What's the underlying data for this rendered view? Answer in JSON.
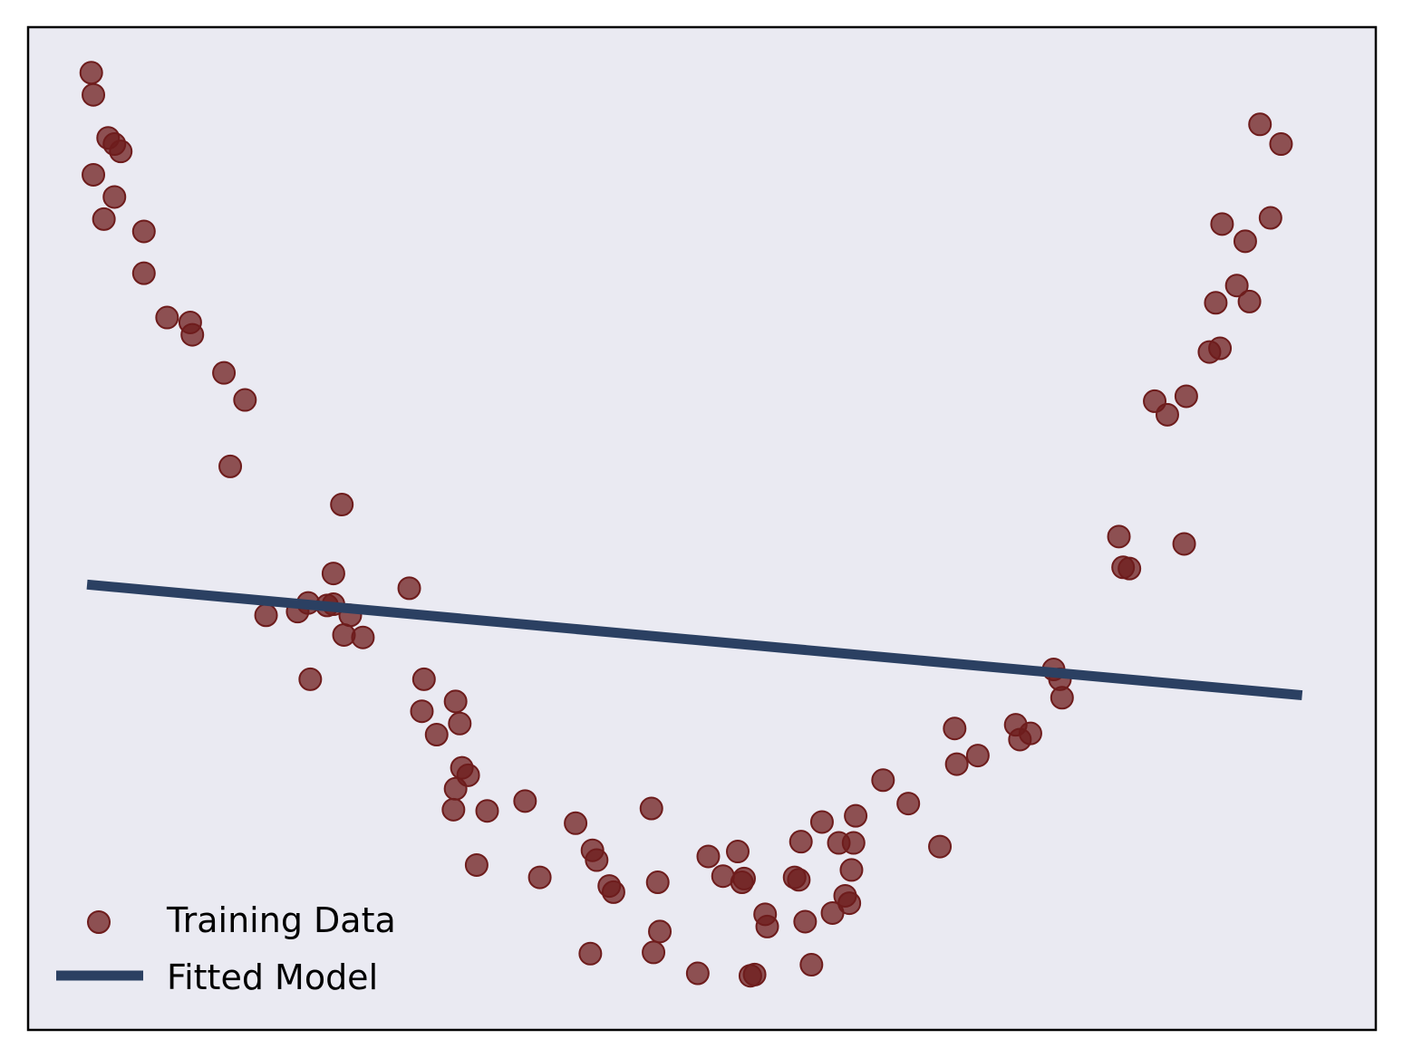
{
  "chart_data": {
    "type": "scatter",
    "title": "",
    "xlabel": "",
    "ylabel": "",
    "xlim": [
      -3.2,
      3.2
    ],
    "ylim": [
      -3.0,
      5.15
    ],
    "grid": false,
    "legend_position": "lower-left",
    "series": [
      {
        "name": "Training Data",
        "kind": "scatter",
        "color": "#6e1c1c",
        "points": [
          [
            -2.9,
            4.78
          ],
          [
            -2.89,
            4.6
          ],
          [
            -2.82,
            4.25
          ],
          [
            -2.79,
            4.2
          ],
          [
            -2.76,
            4.14
          ],
          [
            -2.89,
            3.95
          ],
          [
            -2.79,
            3.77
          ],
          [
            -2.84,
            3.59
          ],
          [
            -2.65,
            3.49
          ],
          [
            -2.65,
            3.15
          ],
          [
            -2.54,
            2.79
          ],
          [
            -2.43,
            2.75
          ],
          [
            -2.42,
            2.65
          ],
          [
            -2.27,
            2.34
          ],
          [
            -2.17,
            2.12
          ],
          [
            -2.24,
            1.58
          ],
          [
            -1.71,
            1.27
          ],
          [
            -1.75,
            0.71
          ],
          [
            -1.75,
            0.46
          ],
          [
            -1.78,
            0.45
          ],
          [
            -1.67,
            0.37
          ],
          [
            -1.7,
            0.21
          ],
          [
            -1.61,
            0.19
          ],
          [
            -2.07,
            0.37
          ],
          [
            -1.92,
            0.4
          ],
          [
            -1.87,
            0.47
          ],
          [
            -1.86,
            -0.15
          ],
          [
            -1.39,
            0.59
          ],
          [
            -1.32,
            -0.15
          ],
          [
            -1.33,
            -0.41
          ],
          [
            -1.26,
            -0.6
          ],
          [
            -1.17,
            -0.33
          ],
          [
            -1.15,
            -0.51
          ],
          [
            -1.14,
            -0.87
          ],
          [
            -1.11,
            -0.93
          ],
          [
            -1.17,
            -1.04
          ],
          [
            -1.18,
            -1.21
          ],
          [
            -1.02,
            -1.22
          ],
          [
            -1.07,
            -1.66
          ],
          [
            -0.84,
            -1.14
          ],
          [
            -0.77,
            -1.76
          ],
          [
            -0.6,
            -1.32
          ],
          [
            -0.52,
            -1.54
          ],
          [
            -0.5,
            -1.62
          ],
          [
            -0.44,
            -1.83
          ],
          [
            -0.42,
            -1.88
          ],
          [
            -0.53,
            -2.38
          ],
          [
            -0.24,
            -1.2
          ],
          [
            -0.21,
            -1.8
          ],
          [
            -0.2,
            -2.2
          ],
          [
            -0.23,
            -2.37
          ],
          [
            -0.02,
            -2.54
          ],
          [
            0.03,
            -1.59
          ],
          [
            0.1,
            -1.75
          ],
          [
            0.17,
            -1.55
          ],
          [
            0.2,
            -1.77
          ],
          [
            0.19,
            -1.8
          ],
          [
            0.23,
            -2.56
          ],
          [
            0.25,
            -2.55
          ],
          [
            0.3,
            -2.06
          ],
          [
            0.31,
            -2.16
          ],
          [
            0.44,
            -1.76
          ],
          [
            0.47,
            -1.47
          ],
          [
            0.46,
            -1.78
          ],
          [
            0.49,
            -2.12
          ],
          [
            0.52,
            -2.47
          ],
          [
            0.57,
            -1.31
          ],
          [
            0.62,
            -2.05
          ],
          [
            0.65,
            -1.48
          ],
          [
            0.68,
            -1.91
          ],
          [
            0.7,
            -1.97
          ],
          [
            0.71,
            -1.7
          ],
          [
            0.72,
            -1.48
          ],
          [
            0.73,
            -1.26
          ],
          [
            0.86,
            -0.97
          ],
          [
            0.98,
            -1.16
          ],
          [
            1.13,
            -1.51
          ],
          [
            1.2,
            -0.55
          ],
          [
            1.21,
            -0.84
          ],
          [
            1.31,
            -0.77
          ],
          [
            1.49,
            -0.52
          ],
          [
            1.51,
            -0.64
          ],
          [
            1.56,
            -0.59
          ],
          [
            1.67,
            -0.07
          ],
          [
            1.7,
            -0.15
          ],
          [
            1.71,
            -0.3
          ],
          [
            1.98,
            1.01
          ],
          [
            2.0,
            0.76
          ],
          [
            2.03,
            0.75
          ],
          [
            2.15,
            2.11
          ],
          [
            2.21,
            2.0
          ],
          [
            2.3,
            2.15
          ],
          [
            2.29,
            0.95
          ],
          [
            2.41,
            2.51
          ],
          [
            2.44,
            2.91
          ],
          [
            2.46,
            2.54
          ],
          [
            2.47,
            3.55
          ],
          [
            2.54,
            3.05
          ],
          [
            2.58,
            3.41
          ],
          [
            2.6,
            2.92
          ],
          [
            2.65,
            4.36
          ],
          [
            2.75,
            4.2
          ],
          [
            2.7,
            3.6
          ]
        ]
      },
      {
        "name": "Fitted Model",
        "kind": "line",
        "color": "#2b4062",
        "points": [
          [
            -2.92,
            0.62
          ],
          [
            2.85,
            -0.28
          ]
        ]
      }
    ],
    "legend": [
      {
        "label": "Training Data",
        "marker": "circle",
        "color": "#6e1c1c"
      },
      {
        "label": "Fitted Model",
        "marker": "line",
        "color": "#2b4062"
      }
    ],
    "background_color": "#eaeaf2"
  }
}
